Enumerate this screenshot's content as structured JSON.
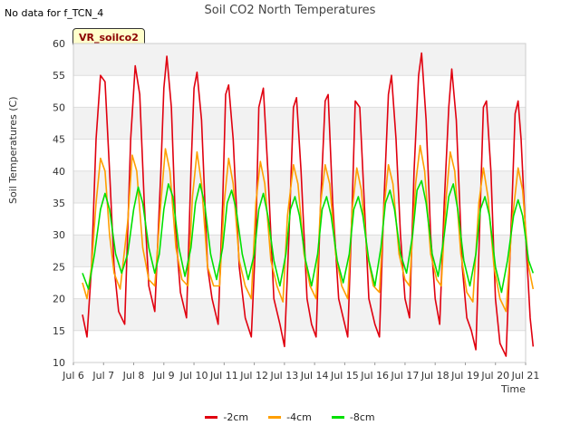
{
  "header": {
    "note": "No data for f_TCN_4",
    "title": "Soil CO2 North Temperatures",
    "badge": "VR_soilco2"
  },
  "chart_data": {
    "type": "line",
    "title": "Soil CO2 North Temperatures",
    "xlabel": "Time",
    "ylabel": "Soil Temperatures (C)",
    "xlim": [
      6,
      21
    ],
    "ylim": [
      10,
      60
    ],
    "grid": true,
    "legend_position": "bottom",
    "x_ticks": [
      "Jul 6",
      "Jul 7",
      "Jul 8",
      "Jul 9",
      "Jul 10",
      "Jul 11",
      "Jul 12",
      "Jul 13",
      "Jul 14",
      "Jul 15",
      "Jul 16",
      "Jul 17",
      "Jul 18",
      "Jul 19",
      "Jul 20",
      "Jul 21"
    ],
    "y_ticks": [
      10,
      15,
      20,
      25,
      30,
      35,
      40,
      45,
      50,
      55,
      60
    ],
    "series": [
      {
        "name": "-2cm",
        "color": "#e0000f",
        "points": [
          [
            6.3,
            17.5
          ],
          [
            6.45,
            14
          ],
          [
            6.6,
            25
          ],
          [
            6.75,
            45
          ],
          [
            6.9,
            55
          ],
          [
            7.05,
            54
          ],
          [
            7.2,
            40
          ],
          [
            7.35,
            25
          ],
          [
            7.5,
            18
          ],
          [
            7.7,
            16
          ],
          [
            7.9,
            45
          ],
          [
            8.05,
            56.5
          ],
          [
            8.2,
            52
          ],
          [
            8.35,
            35
          ],
          [
            8.5,
            22
          ],
          [
            8.7,
            18
          ],
          [
            8.9,
            40
          ],
          [
            9.0,
            53
          ],
          [
            9.1,
            58
          ],
          [
            9.25,
            50
          ],
          [
            9.4,
            30
          ],
          [
            9.55,
            21
          ],
          [
            9.75,
            17
          ],
          [
            9.9,
            40
          ],
          [
            10.0,
            53
          ],
          [
            10.1,
            55.5
          ],
          [
            10.25,
            48
          ],
          [
            10.45,
            25
          ],
          [
            10.6,
            20
          ],
          [
            10.8,
            16
          ],
          [
            10.95,
            35
          ],
          [
            11.05,
            52
          ],
          [
            11.15,
            53.5
          ],
          [
            11.3,
            45
          ],
          [
            11.5,
            25
          ],
          [
            11.7,
            17
          ],
          [
            11.9,
            14
          ],
          [
            12.05,
            30
          ],
          [
            12.15,
            50
          ],
          [
            12.3,
            53
          ],
          [
            12.45,
            40
          ],
          [
            12.65,
            20
          ],
          [
            12.85,
            16
          ],
          [
            13.0,
            12.5
          ],
          [
            13.15,
            30
          ],
          [
            13.3,
            50
          ],
          [
            13.4,
            51.5
          ],
          [
            13.55,
            40
          ],
          [
            13.75,
            20
          ],
          [
            13.9,
            16
          ],
          [
            14.05,
            14
          ],
          [
            14.2,
            35
          ],
          [
            14.35,
            51
          ],
          [
            14.45,
            52
          ],
          [
            14.6,
            35
          ],
          [
            14.8,
            20
          ],
          [
            15.0,
            16
          ],
          [
            15.1,
            14
          ],
          [
            15.25,
            35
          ],
          [
            15.35,
            51
          ],
          [
            15.5,
            50
          ],
          [
            15.65,
            35
          ],
          [
            15.8,
            20
          ],
          [
            16.0,
            16
          ],
          [
            16.15,
            14
          ],
          [
            16.3,
            35
          ],
          [
            16.45,
            52
          ],
          [
            16.55,
            55
          ],
          [
            16.7,
            45
          ],
          [
            16.85,
            30
          ],
          [
            17.0,
            20
          ],
          [
            17.15,
            17
          ],
          [
            17.3,
            40
          ],
          [
            17.45,
            55
          ],
          [
            17.55,
            58.5
          ],
          [
            17.7,
            48
          ],
          [
            17.85,
            30
          ],
          [
            18.0,
            20
          ],
          [
            18.15,
            16
          ],
          [
            18.3,
            35
          ],
          [
            18.45,
            50
          ],
          [
            18.55,
            56
          ],
          [
            18.7,
            48
          ],
          [
            18.9,
            25
          ],
          [
            19.05,
            17
          ],
          [
            19.2,
            15
          ],
          [
            19.35,
            12
          ],
          [
            19.5,
            35
          ],
          [
            19.6,
            50
          ],
          [
            19.7,
            51
          ],
          [
            19.85,
            40
          ],
          [
            20.0,
            20
          ],
          [
            20.15,
            13
          ],
          [
            20.35,
            11
          ],
          [
            20.55,
            35
          ],
          [
            20.65,
            49
          ],
          [
            20.75,
            51
          ],
          [
            20.85,
            45
          ],
          [
            21.0,
            30
          ],
          [
            21.15,
            17
          ],
          [
            21.25,
            12.5
          ]
        ]
      },
      {
        "name": "-4cm",
        "color": "#ff9f00",
        "points": [
          [
            6.3,
            22.5
          ],
          [
            6.45,
            20
          ],
          [
            6.6,
            25
          ],
          [
            6.75,
            35
          ],
          [
            6.9,
            42
          ],
          [
            7.05,
            40
          ],
          [
            7.2,
            30
          ],
          [
            7.35,
            24
          ],
          [
            7.55,
            21.5
          ],
          [
            7.8,
            32
          ],
          [
            7.95,
            42.5
          ],
          [
            8.1,
            40
          ],
          [
            8.3,
            28
          ],
          [
            8.5,
            23
          ],
          [
            8.7,
            22
          ],
          [
            8.9,
            35
          ],
          [
            9.05,
            43.5
          ],
          [
            9.2,
            40
          ],
          [
            9.4,
            28
          ],
          [
            9.6,
            23
          ],
          [
            9.8,
            22
          ],
          [
            9.95,
            36
          ],
          [
            10.1,
            43
          ],
          [
            10.25,
            38
          ],
          [
            10.45,
            25
          ],
          [
            10.65,
            22
          ],
          [
            10.85,
            22
          ],
          [
            11.0,
            35
          ],
          [
            11.15,
            42
          ],
          [
            11.3,
            38
          ],
          [
            11.5,
            26
          ],
          [
            11.7,
            22
          ],
          [
            11.9,
            20
          ],
          [
            12.05,
            35
          ],
          [
            12.2,
            41.5
          ],
          [
            12.35,
            38
          ],
          [
            12.55,
            26
          ],
          [
            12.75,
            22
          ],
          [
            12.95,
            19.5
          ],
          [
            13.1,
            33
          ],
          [
            13.3,
            41
          ],
          [
            13.45,
            38
          ],
          [
            13.65,
            27
          ],
          [
            13.85,
            22
          ],
          [
            14.05,
            20
          ],
          [
            14.2,
            35
          ],
          [
            14.35,
            41
          ],
          [
            14.5,
            38
          ],
          [
            14.7,
            27
          ],
          [
            14.9,
            22
          ],
          [
            15.1,
            20
          ],
          [
            15.25,
            34
          ],
          [
            15.4,
            40.5
          ],
          [
            15.55,
            37
          ],
          [
            15.75,
            27
          ],
          [
            15.95,
            22
          ],
          [
            16.15,
            21
          ],
          [
            16.3,
            34
          ],
          [
            16.45,
            41
          ],
          [
            16.6,
            38
          ],
          [
            16.8,
            27
          ],
          [
            17.0,
            23
          ],
          [
            17.15,
            22
          ],
          [
            17.35,
            38
          ],
          [
            17.5,
            44
          ],
          [
            17.65,
            40
          ],
          [
            17.85,
            27
          ],
          [
            18.05,
            23
          ],
          [
            18.2,
            22
          ],
          [
            18.35,
            35
          ],
          [
            18.5,
            43
          ],
          [
            18.65,
            40
          ],
          [
            18.85,
            27
          ],
          [
            19.05,
            21
          ],
          [
            19.25,
            19.5
          ],
          [
            19.45,
            35
          ],
          [
            19.6,
            40.5
          ],
          [
            19.75,
            36
          ],
          [
            19.95,
            25
          ],
          [
            20.15,
            20
          ],
          [
            20.35,
            18
          ],
          [
            20.55,
            32
          ],
          [
            20.75,
            40.5
          ],
          [
            20.9,
            37
          ],
          [
            21.1,
            25
          ],
          [
            21.25,
            21.5
          ]
        ]
      },
      {
        "name": "-8cm",
        "color": "#00e000",
        "points": [
          [
            6.3,
            24
          ],
          [
            6.5,
            21.5
          ],
          [
            6.7,
            27
          ],
          [
            6.9,
            34
          ],
          [
            7.05,
            36.5
          ],
          [
            7.2,
            34
          ],
          [
            7.4,
            27
          ],
          [
            7.6,
            24
          ],
          [
            7.8,
            27
          ],
          [
            8.0,
            34
          ],
          [
            8.15,
            37.5
          ],
          [
            8.3,
            35
          ],
          [
            8.5,
            28
          ],
          [
            8.7,
            24
          ],
          [
            8.85,
            27
          ],
          [
            9.0,
            34
          ],
          [
            9.15,
            38
          ],
          [
            9.3,
            36
          ],
          [
            9.5,
            28
          ],
          [
            9.7,
            23.5
          ],
          [
            9.9,
            28
          ],
          [
            10.05,
            35
          ],
          [
            10.2,
            38
          ],
          [
            10.35,
            35
          ],
          [
            10.55,
            27
          ],
          [
            10.75,
            23
          ],
          [
            10.95,
            28
          ],
          [
            11.1,
            35
          ],
          [
            11.25,
            37
          ],
          [
            11.4,
            34
          ],
          [
            11.6,
            27
          ],
          [
            11.8,
            23
          ],
          [
            12.0,
            27
          ],
          [
            12.15,
            34
          ],
          [
            12.3,
            36.5
          ],
          [
            12.45,
            33
          ],
          [
            12.65,
            26
          ],
          [
            12.85,
            22
          ],
          [
            13.05,
            27
          ],
          [
            13.2,
            34
          ],
          [
            13.35,
            36
          ],
          [
            13.5,
            33
          ],
          [
            13.7,
            26
          ],
          [
            13.9,
            22
          ],
          [
            14.1,
            27
          ],
          [
            14.25,
            34
          ],
          [
            14.4,
            36
          ],
          [
            14.55,
            33
          ],
          [
            14.75,
            26
          ],
          [
            14.95,
            22.5
          ],
          [
            15.15,
            27
          ],
          [
            15.3,
            34
          ],
          [
            15.45,
            36
          ],
          [
            15.6,
            33
          ],
          [
            15.8,
            26
          ],
          [
            16.0,
            22
          ],
          [
            16.2,
            28
          ],
          [
            16.35,
            35
          ],
          [
            16.5,
            37
          ],
          [
            16.65,
            34
          ],
          [
            16.85,
            27
          ],
          [
            17.05,
            24
          ],
          [
            17.25,
            30
          ],
          [
            17.4,
            37
          ],
          [
            17.55,
            38.5
          ],
          [
            17.7,
            35
          ],
          [
            17.9,
            27
          ],
          [
            18.1,
            23.5
          ],
          [
            18.3,
            30
          ],
          [
            18.45,
            36
          ],
          [
            18.6,
            38
          ],
          [
            18.75,
            34
          ],
          [
            18.95,
            26
          ],
          [
            19.15,
            22
          ],
          [
            19.35,
            27
          ],
          [
            19.5,
            34
          ],
          [
            19.65,
            36
          ],
          [
            19.8,
            33
          ],
          [
            20.0,
            25
          ],
          [
            20.2,
            21
          ],
          [
            20.4,
            26
          ],
          [
            20.6,
            33
          ],
          [
            20.75,
            35.5
          ],
          [
            20.9,
            33
          ],
          [
            21.1,
            26
          ],
          [
            21.25,
            24
          ]
        ]
      }
    ]
  }
}
